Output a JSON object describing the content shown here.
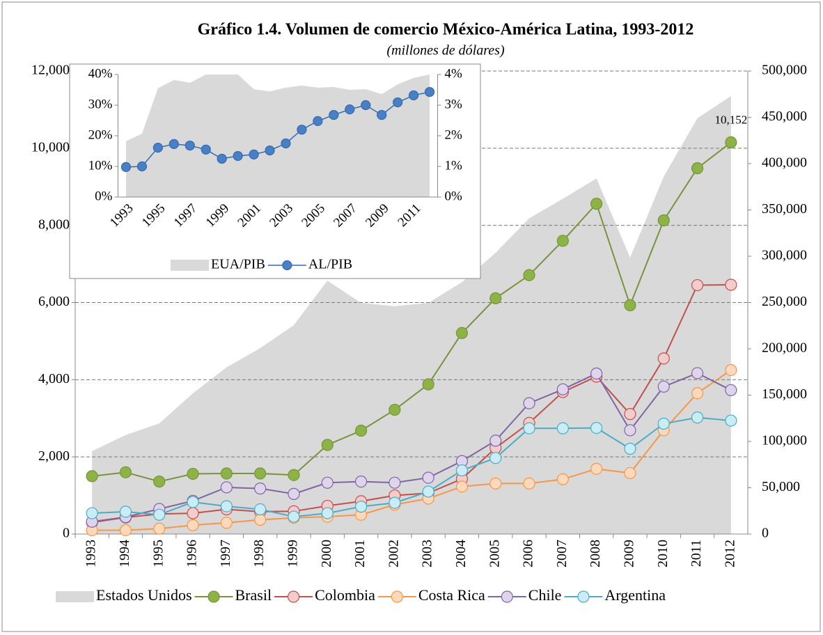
{
  "chart_data": [
    {
      "type": "line",
      "title": "Gráfico 1.4. Volumen de comercio México-América Latina, 1993-2012",
      "subtitle": "(millones de dólares)",
      "categories": [
        "1993",
        "1994",
        "1995",
        "1996",
        "1997",
        "1998",
        "1999",
        "2000",
        "2001",
        "2002",
        "2003",
        "2004",
        "2005",
        "2006",
        "2007",
        "2008",
        "2009",
        "2010",
        "2011",
        "2012"
      ],
      "ylim": [
        0,
        12000
      ],
      "yticks": [
        0,
        {
          "value": 2000,
          "label": "2,000"
        },
        {
          "value": 4000,
          "label": "4,000"
        },
        {
          "value": 6000,
          "label": "6,000"
        },
        {
          "value": 8000,
          "label": "8,000"
        },
        {
          "value": 10000,
          "label": "10,000"
        },
        {
          "value": 12000,
          "label": "12,000"
        }
      ],
      "y2lim": [
        0,
        500000
      ],
      "y2ticks": [
        0,
        {
          "value": 50000,
          "label": "50,000"
        },
        {
          "value": 100000,
          "label": "100,000"
        },
        {
          "value": 150000,
          "label": "150,000"
        },
        {
          "value": 200000,
          "label": "200,000"
        },
        {
          "value": 250000,
          "label": "250,000"
        },
        {
          "value": 300000,
          "label": "300,000"
        },
        {
          "value": 350000,
          "label": "350,000"
        },
        {
          "value": 400000,
          "label": "400,000"
        },
        {
          "value": 450000,
          "label": "450,000"
        },
        {
          "value": 500000,
          "label": "500,000"
        }
      ],
      "grid": true,
      "series": [
        {
          "name": "Estados Unidos",
          "type": "area",
          "axis": "y2",
          "color": "#d9d9d9",
          "values": [
            89500,
            107000,
            119500,
            152000,
            180000,
            200700,
            225600,
            273700,
            249600,
            246000,
            249600,
            272000,
            303700,
            341000,
            362000,
            384000,
            298500,
            386000,
            449000,
            473000
          ]
        },
        {
          "name": "Brasil",
          "color": "#77933c",
          "marker_fill": "#8db347",
          "values": [
            1500,
            1600,
            1360,
            1560,
            1570,
            1570,
            1530,
            2310,
            2680,
            3220,
            3880,
            5210,
            6110,
            6710,
            7600,
            8560,
            5930,
            8130,
            9480,
            10152
          ],
          "value_labels": [
            null,
            null,
            null,
            null,
            null,
            null,
            null,
            null,
            null,
            null,
            null,
            null,
            null,
            null,
            null,
            null,
            null,
            null,
            null,
            "10,152"
          ]
        },
        {
          "name": "Colombia",
          "color": "#c0504d",
          "marker_fill": "#f4cccc",
          "values": [
            300,
            430,
            520,
            540,
            640,
            580,
            590,
            730,
            850,
            1000,
            1060,
            1430,
            2230,
            2880,
            3680,
            4080,
            3110,
            4550,
            6450,
            6460
          ]
        },
        {
          "name": "Costa Rica",
          "color": "#f79646",
          "marker_fill": "#fcd9bd",
          "values": [
            100,
            100,
            140,
            230,
            290,
            370,
            420,
            450,
            500,
            760,
            920,
            1230,
            1310,
            1310,
            1420,
            1690,
            1580,
            2690,
            3650,
            4250
          ]
        },
        {
          "name": "Chile",
          "color": "#8064a2",
          "marker_fill": "#ded5ec",
          "values": [
            320,
            440,
            650,
            860,
            1210,
            1180,
            1040,
            1330,
            1360,
            1330,
            1460,
            1890,
            2420,
            3390,
            3750,
            4160,
            2690,
            3820,
            4170,
            3730
          ]
        },
        {
          "name": "Argentina",
          "color": "#4bacc6",
          "marker_fill": "#c9ecf5",
          "values": [
            540,
            580,
            500,
            830,
            720,
            640,
            450,
            540,
            710,
            810,
            1100,
            1650,
            1970,
            2740,
            2740,
            2750,
            2210,
            2860,
            3020,
            2940
          ]
        }
      ]
    },
    {
      "type": "line",
      "categories": [
        "1993",
        null,
        "1995",
        null,
        "1997",
        null,
        "1999",
        null,
        "2001",
        null,
        "2003",
        null,
        "2005",
        null,
        "2007",
        null,
        "2009",
        null,
        "2011",
        null
      ],
      "ylim": [
        0,
        40
      ],
      "yticks": [
        {
          "value": 0,
          "label": "0%"
        },
        {
          "value": 10,
          "label": "10%"
        },
        {
          "value": 20,
          "label": "20%"
        },
        {
          "value": 30,
          "label": "30%"
        },
        {
          "value": 40,
          "label": "40%"
        }
      ],
      "y2lim": [
        0,
        4
      ],
      "y2ticks": [
        {
          "value": 0,
          "label": "0%"
        },
        {
          "value": 1,
          "label": "1%"
        },
        {
          "value": 2,
          "label": "2%"
        },
        {
          "value": 3,
          "label": "3%"
        },
        {
          "value": 4,
          "label": "4%"
        }
      ],
      "grid": false,
      "series": [
        {
          "name": "EUA/PIB",
          "type": "area",
          "color": "#d9d9d9",
          "values": [
            18.2,
            20.7,
            35.5,
            38.2,
            37.3,
            40,
            40,
            40,
            35.2,
            34.5,
            35.7,
            36.4,
            35.7,
            35.9,
            35,
            35.2,
            33.6,
            36.8,
            38.9,
            40
          ]
        },
        {
          "name": "AL/PIB",
          "axis": "y2",
          "color": "#2f6bb3",
          "marker_fill": "#4a7fc4",
          "values": [
            0.98,
            1.0,
            1.61,
            1.73,
            1.68,
            1.55,
            1.25,
            1.34,
            1.39,
            1.52,
            1.75,
            2.2,
            2.48,
            2.68,
            2.86,
            3.0,
            2.68,
            3.09,
            3.32,
            3.43
          ]
        }
      ]
    }
  ]
}
